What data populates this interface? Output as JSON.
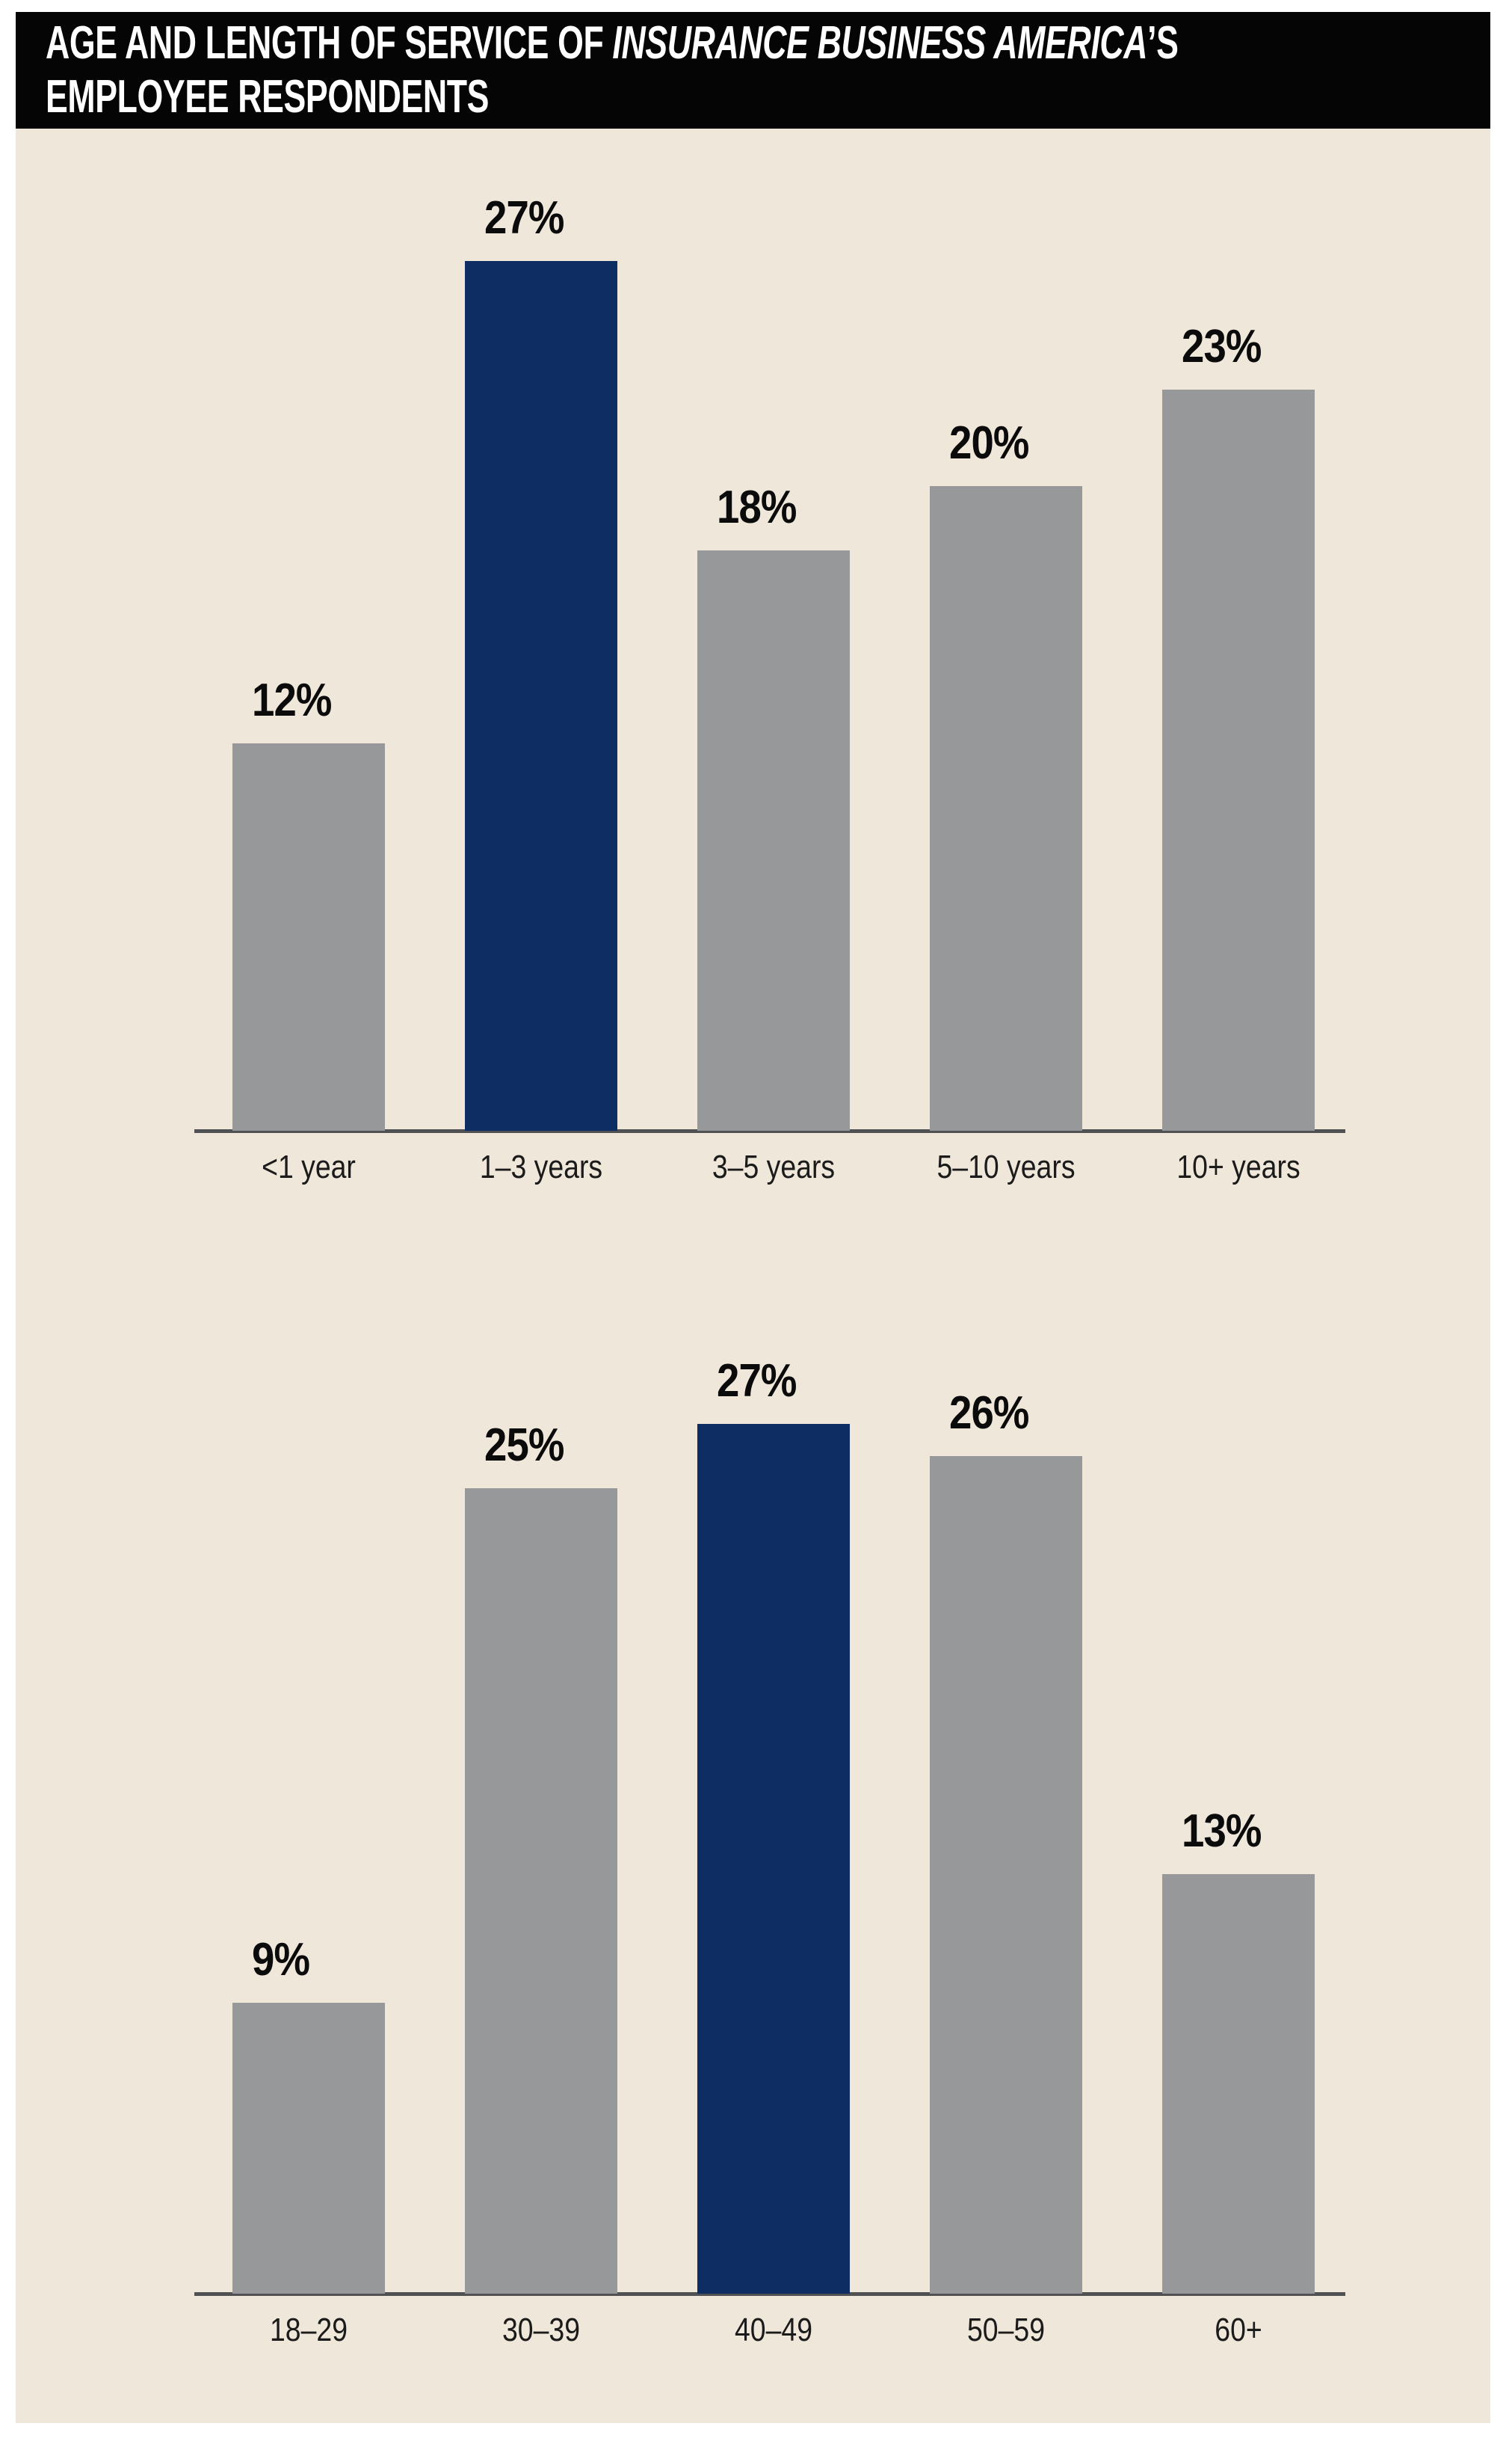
{
  "header": {
    "line1_prefix": "AGE AND LENGTH OF SERVICE OF ",
    "line1_italic": "INSURANCE BUSINESS AMERICA",
    "line1_suffix": "’S",
    "line2": "EMPLOYEE RESPONDENTS"
  },
  "colors": {
    "page_background": "#FFFFFF",
    "panel_background": "#EFE7DA",
    "header_background": "#050505",
    "header_text": "#FFFFFF",
    "bar_gray": "#97989A",
    "bar_highlight_navy": "#0E2E63",
    "axis_line": "#4F5152",
    "label_text": "#0B0B0B"
  },
  "chart_data": [
    {
      "type": "bar",
      "categories": [
        "<1 year",
        "1–3 years",
        "3–5 years",
        "5–10 years",
        "10+ years"
      ],
      "values": [
        12,
        27,
        18,
        20,
        23
      ],
      "value_labels": [
        "12%",
        "27%",
        "18%",
        "20%",
        "23%"
      ],
      "highlight_index": 1,
      "bar_color": "#97989A",
      "highlight_color": "#0E2E63",
      "gridlines": false,
      "legend": "none",
      "value_axis_shown": false
    },
    {
      "type": "bar",
      "categories": [
        "18–29",
        "30–39",
        "40–49",
        "50–59",
        "60+"
      ],
      "values": [
        9,
        25,
        27,
        26,
        13
      ],
      "value_labels": [
        "9%",
        "25%",
        "27%",
        "26%",
        "13%"
      ],
      "highlight_index": 2,
      "bar_color": "#97989A",
      "highlight_color": "#0E2E63",
      "gridlines": false,
      "legend": "none",
      "value_axis_shown": false
    }
  ]
}
